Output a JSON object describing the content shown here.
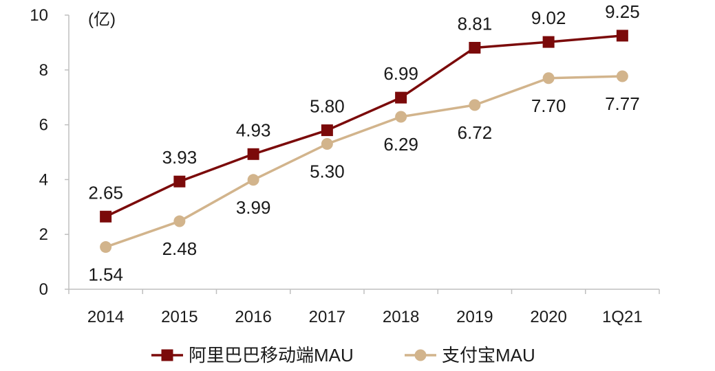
{
  "chart_data": {
    "type": "line",
    "categories": [
      "2014",
      "2015",
      "2016",
      "2017",
      "2018",
      "2019",
      "2020",
      "1Q21"
    ],
    "unit_label": "(亿)",
    "ylim": [
      0,
      10
    ],
    "yticks": [
      0,
      2,
      4,
      6,
      8,
      10
    ],
    "grid": false,
    "legend_position": "bottom",
    "series": [
      {
        "name": "阿里巴巴移动端MAU",
        "values": [
          2.65,
          3.93,
          4.93,
          5.8,
          6.99,
          8.81,
          9.02,
          9.25
        ],
        "labels": [
          "2.65",
          "3.93",
          "4.93",
          "5.80",
          "6.99",
          "8.81",
          "9.02",
          "9.25"
        ],
        "color": "#7b0a0a",
        "marker": "square"
      },
      {
        "name": "支付宝MAU",
        "values": [
          1.54,
          2.48,
          3.99,
          5.3,
          6.29,
          6.72,
          7.7,
          7.77
        ],
        "labels": [
          "1.54",
          "2.48",
          "3.99",
          "5.30",
          "6.29",
          "6.72",
          "7.70",
          "7.77"
        ],
        "color": "#d2b48c",
        "marker": "circle"
      }
    ]
  }
}
